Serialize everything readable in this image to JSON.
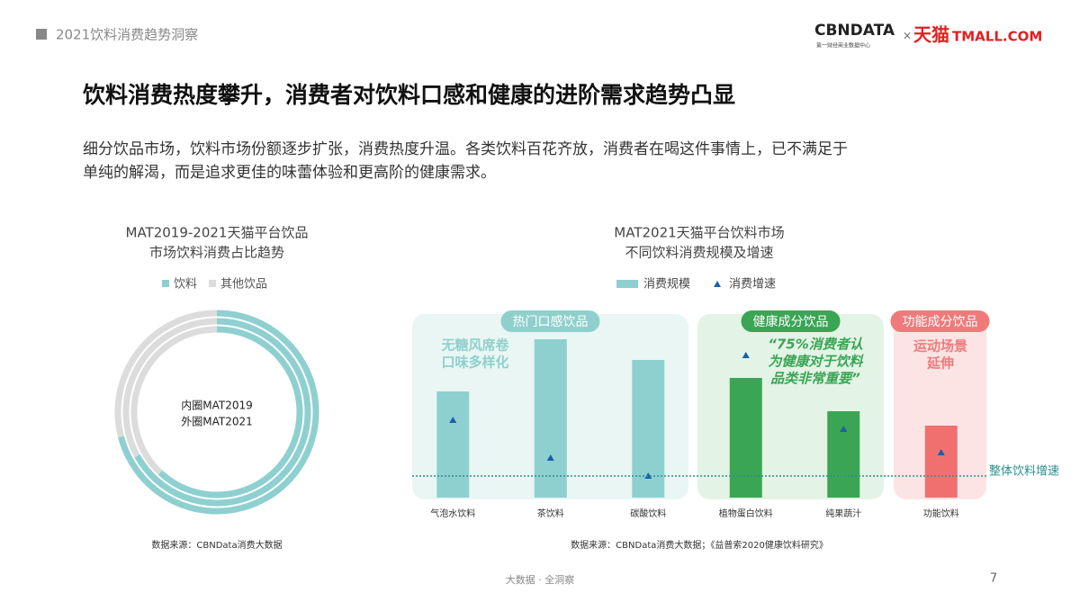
{
  "header": {
    "section": "2021饮料消费趋势洞察",
    "logo_cbn": "CBNDATA",
    "logo_cbn_sub": "第一财经商业数据中心",
    "logo_x": "×",
    "logo_tmall": "天猫",
    "logo_tmall_en": "TMALL.COM"
  },
  "title": "饮料消费热度攀升，消费者对饮料口感和健康的进阶需求趋势凸显",
  "body": [
    "细分饮品市场，饮料市场份额逐步扩张，消费热度升温。各类饮料百花齐放，消费者在喝这件事情上，已不满足于",
    "单纯的解渴，而是追求更佳的味蕾体验和更高阶的健康需求。"
  ],
  "chart_data": [
    {
      "type": "donut",
      "title": [
        "MAT2019-2021天猫平台饮品",
        "市场饮料消费占比趋势"
      ],
      "categories": [
        null,
        null,
        null
      ],
      "series": [
        {
          "name": "饮料",
          "color": "#8ed0d0",
          "values": [
            62,
            67,
            71
          ]
        },
        {
          "name": "其他饮品",
          "color": "#dcdcdc",
          "values": [
            38,
            33,
            29
          ]
        }
      ],
      "center_labels": [
        "内圈MAT2019",
        "外圈MAT2021"
      ],
      "source": "数据来源：CBNData消费大数据"
    },
    {
      "type": "bar",
      "title": [
        "MAT2021天猫平台饮料市场",
        "不同饮料消费规模及增速"
      ],
      "categories": [
        "气泡水饮料",
        "茶饮料",
        "碳酸饮料",
        "植物蛋白饮料",
        "纯果蔬汁",
        "功能饮料"
      ],
      "series": [
        {
          "name": "消费规模",
          "color": "#8ed0d0",
          "colors": [
            "#8ed0d0",
            "#8ed0d0",
            "#8ed0d0",
            "#3aa655",
            "#3aa655",
            "#f07070"
          ],
          "values": [
            118,
            176,
            153,
            133,
            96,
            80
          ]
        },
        {
          "name": "消费增速",
          "color": "#1a5fa8",
          "marker": "triangle",
          "values": [
            86,
            44,
            24,
            158,
            76,
            50
          ]
        }
      ],
      "ylim": [
        0,
        200
      ],
      "reference_line": {
        "value": 24,
        "label": "整体饮料增速",
        "color": "#2a8f8f"
      },
      "groups": [
        {
          "label": "热门口感饮品",
          "note": [
            "无糖风席卷",
            "口味多样化"
          ],
          "color": "#8fd0cc",
          "background": "#e9f6f4"
        },
        {
          "label": "健康成分饮品",
          "note": [
            "“75%消费者认",
            "为健康对于饮料",
            "品类非常重要”"
          ],
          "color": "#3aa655",
          "background": "#e3f3e5"
        },
        {
          "label": "功能成分饮品",
          "note": [
            "运动场景",
            "延伸"
          ],
          "color": "#f07a7a",
          "background": "#fde4e4"
        }
      ],
      "source": "数据来源：CBNData消费大数据；《益普索2020健康饮料研究》"
    }
  ],
  "footer": {
    "tagline": "大数据 · 全洞察",
    "page": "7"
  }
}
